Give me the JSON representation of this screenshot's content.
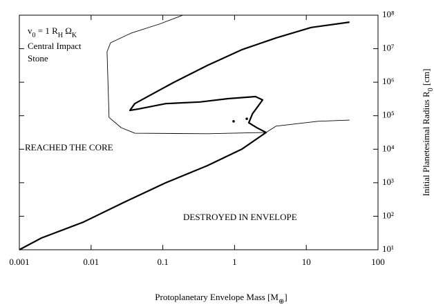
{
  "chart_data": {
    "type": "line",
    "xlog": true,
    "ylog": true,
    "xlim": [
      0.001,
      100
    ],
    "ylim": [
      10,
      100000000
    ],
    "xticks": [
      0.001,
      0.01,
      0.1,
      1,
      10,
      100
    ],
    "yticks": [
      {
        "value": 10,
        "label": "10¹"
      },
      {
        "value": 100,
        "label": "10²"
      },
      {
        "value": 1000,
        "label": "10³"
      },
      {
        "value": 10000,
        "label": "10⁴"
      },
      {
        "value": 100000,
        "label": "10⁵"
      },
      {
        "value": 1000000,
        "label": "10⁶"
      },
      {
        "value": 10000000,
        "label": "10⁷"
      },
      {
        "value": 100000000,
        "label": "10⁸"
      }
    ],
    "xlabel": [
      {
        "text": "Protoplanetary Envelope Mass  [M",
        "sub": false
      },
      {
        "text": "⊕",
        "sub": true
      },
      {
        "text": "]",
        "sub": false
      }
    ],
    "ylabel": [
      {
        "text": "Initial Planetesimal Radius R",
        "sub": false
      },
      {
        "text": "0",
        "sub": true
      },
      {
        "text": " [cm]",
        "sub": false
      }
    ],
    "annotations": [
      [
        {
          "text": "v",
          "sub": false
        },
        {
          "text": "0",
          "sub": true
        },
        {
          "text": " = 1 R",
          "sub": false
        },
        {
          "text": "H",
          "sub": true
        },
        {
          "text": " Ω",
          "sub": false
        },
        {
          "text": "K",
          "sub": true
        }
      ],
      [
        {
          "text": "Central Impact",
          "sub": false
        }
      ],
      [
        {
          "text": "Stone",
          "sub": false
        }
      ],
      [
        {
          "text": "REACHED THE CORE",
          "sub": false
        }
      ],
      [
        {
          "text": "DESTROYED IN ENVELOPE",
          "sub": false
        }
      ]
    ],
    "series": [
      {
        "color": "#000000",
        "width": 2.2,
        "x": [
          0.001,
          0.00203,
          0.0077,
          0.0291,
          0.11,
          0.417,
          1.26,
          2.75,
          2.05,
          1.58,
          1.78,
          2.46,
          1.96,
          0.81,
          0.33,
          0.11,
          0.0453,
          0.0348,
          0.0406,
          0.138,
          0.417,
          1.26,
          3.8,
          11.7,
          40
        ],
        "y": [
          10,
          22.4,
          66,
          263,
          1000,
          3240,
          10000,
          31600,
          43700,
          61600,
          115000,
          295000,
          372000,
          323000,
          257000,
          229000,
          158000,
          144000,
          229000,
          955000,
          3160000,
          9300000,
          21000000,
          43000000,
          62000000
        ]
      },
      {
        "color": "#000000",
        "width": 0.9,
        "x": [
          0.19,
          0.089,
          0.036,
          0.0187,
          0.0167,
          0.0178,
          0.0262,
          0.0406,
          0.417,
          2.75,
          3.8,
          14.5,
          40
        ],
        "y": [
          100000000,
          54000000,
          29000000,
          15000000,
          8100000,
          89000,
          44000,
          30000,
          29000,
          31600,
          49000,
          68000,
          74000
        ]
      },
      {
        "color": "#000000",
        "marker": true,
        "x": [
          0.97,
          1.48
        ],
        "y": [
          68000,
          81000
        ]
      }
    ]
  }
}
